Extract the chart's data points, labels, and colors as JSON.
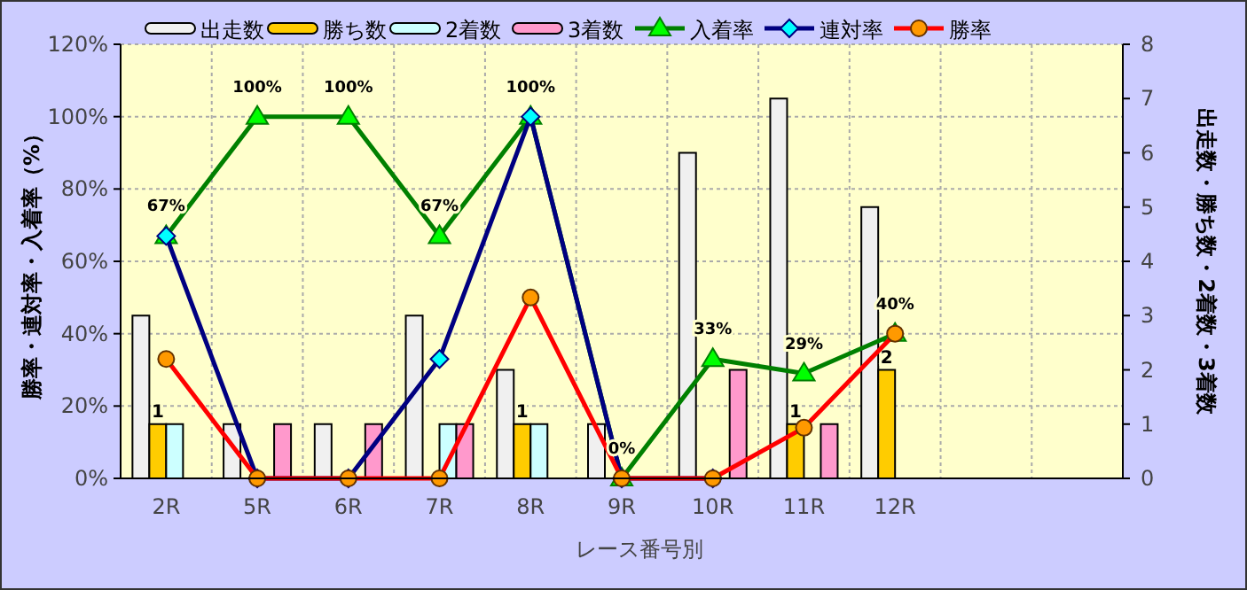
{
  "chart_data": {
    "type": "bar",
    "xlabel": "レース番号別",
    "ylabel": "勝率・連対率・入着率（%）",
    "y2label": "出走数・勝ち数・2着数・3着数",
    "categories": [
      "2R",
      "5R",
      "6R",
      "7R",
      "8R",
      "9R",
      "10R",
      "11R",
      "12R",
      null,
      null
    ],
    "series": [
      {
        "name": "出走数",
        "axis": "y2",
        "color": "#f0f0f0",
        "values": [
          3,
          1,
          1,
          3,
          2,
          1,
          6,
          7,
          5,
          null,
          null
        ]
      },
      {
        "name": "勝ち数",
        "axis": "y2",
        "color": "#ffcc00",
        "values": [
          1,
          0,
          0,
          0,
          1,
          0,
          0,
          1,
          2,
          null,
          null
        ],
        "value_labels": [
          "1",
          null,
          null,
          null,
          "1",
          null,
          null,
          "1",
          "2",
          null,
          null
        ]
      },
      {
        "name": "2着数",
        "axis": "y2",
        "color": "#ccffff",
        "values": [
          1,
          0,
          0,
          1,
          1,
          0,
          0,
          0,
          0,
          null,
          null
        ]
      },
      {
        "name": "3着数",
        "axis": "y2",
        "color": "#ff99cc",
        "values": [
          0,
          1,
          1,
          1,
          0,
          0,
          2,
          1,
          0,
          null,
          null
        ]
      },
      {
        "name": "入着率",
        "type": "line",
        "color": "#008000",
        "marker": "triangle",
        "values": [
          67,
          100,
          100,
          67,
          100,
          0,
          33,
          29,
          40,
          null,
          null
        ],
        "value_labels": [
          "67%",
          "100%",
          "100%",
          "67%",
          "100%",
          "0%",
          "33%",
          "29%",
          "40%",
          null,
          null
        ]
      },
      {
        "name": "連対率",
        "type": "line",
        "color": "#000080",
        "marker": "diamond",
        "values": [
          67,
          0,
          0,
          33,
          100,
          0,
          0,
          null,
          null,
          null,
          null
        ]
      },
      {
        "name": "勝率",
        "type": "line",
        "color": "#ff0000",
        "marker": "circle",
        "values": [
          33,
          0,
          0,
          0,
          50,
          0,
          0,
          14,
          40,
          null,
          null
        ]
      }
    ],
    "ylim": [
      0,
      120
    ],
    "yticks": [
      {
        "value": 0,
        "label": "0%"
      },
      {
        "value": 20,
        "label": "20%"
      },
      {
        "value": 40,
        "label": "40%"
      },
      {
        "value": 60,
        "label": "60%"
      },
      {
        "value": 80,
        "label": "80%"
      },
      {
        "value": 100,
        "label": "100%"
      },
      {
        "value": 120,
        "label": "120%"
      }
    ],
    "y2lim": [
      0,
      8
    ],
    "y2ticks": [
      0,
      1,
      2,
      3,
      4,
      5,
      6,
      7,
      8
    ],
    "grid": true,
    "legend": "top"
  }
}
